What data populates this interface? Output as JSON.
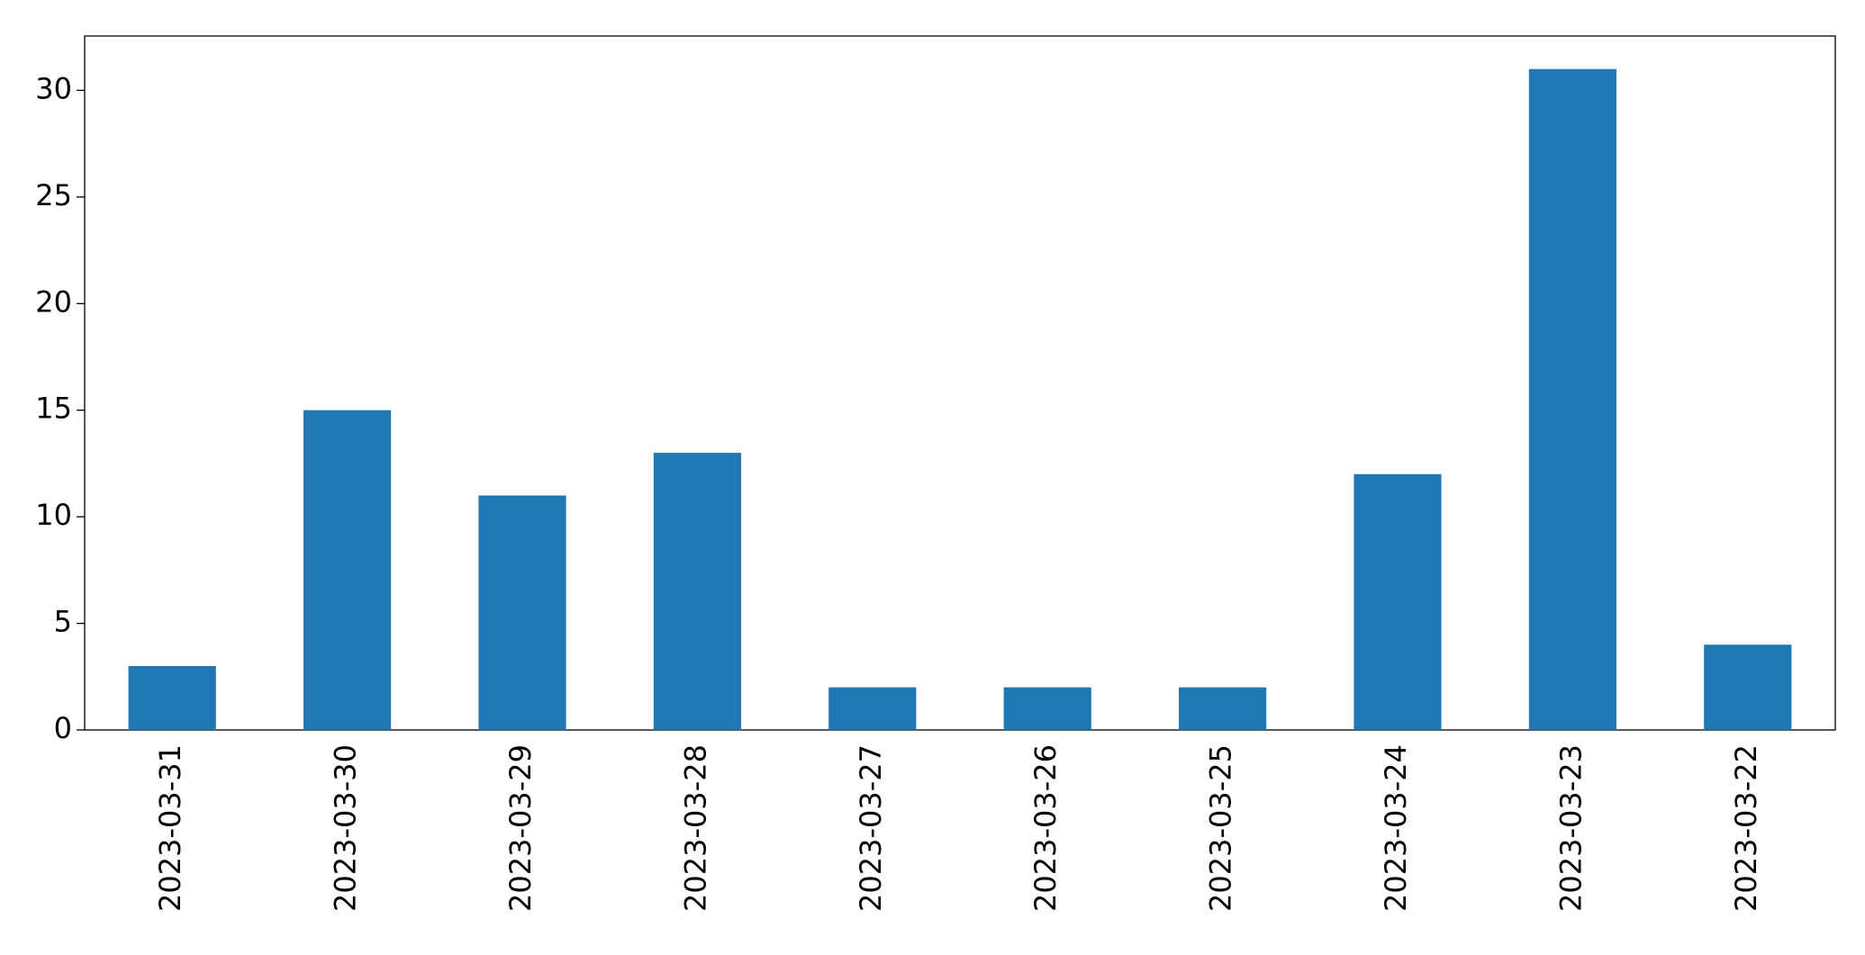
{
  "chart_data": {
    "type": "bar",
    "categories": [
      "2023-03-31",
      "2023-03-30",
      "2023-03-29",
      "2023-03-28",
      "2023-03-27",
      "2023-03-26",
      "2023-03-25",
      "2023-03-24",
      "2023-03-23",
      "2023-03-22"
    ],
    "values": [
      3,
      15,
      11,
      13,
      2,
      2,
      2,
      12,
      31,
      4
    ],
    "color": "#1f77b4",
    "ylim": [
      0,
      32.55
    ],
    "yticks": [
      0,
      5,
      10,
      15,
      20,
      25,
      30
    ],
    "grid": false
  }
}
